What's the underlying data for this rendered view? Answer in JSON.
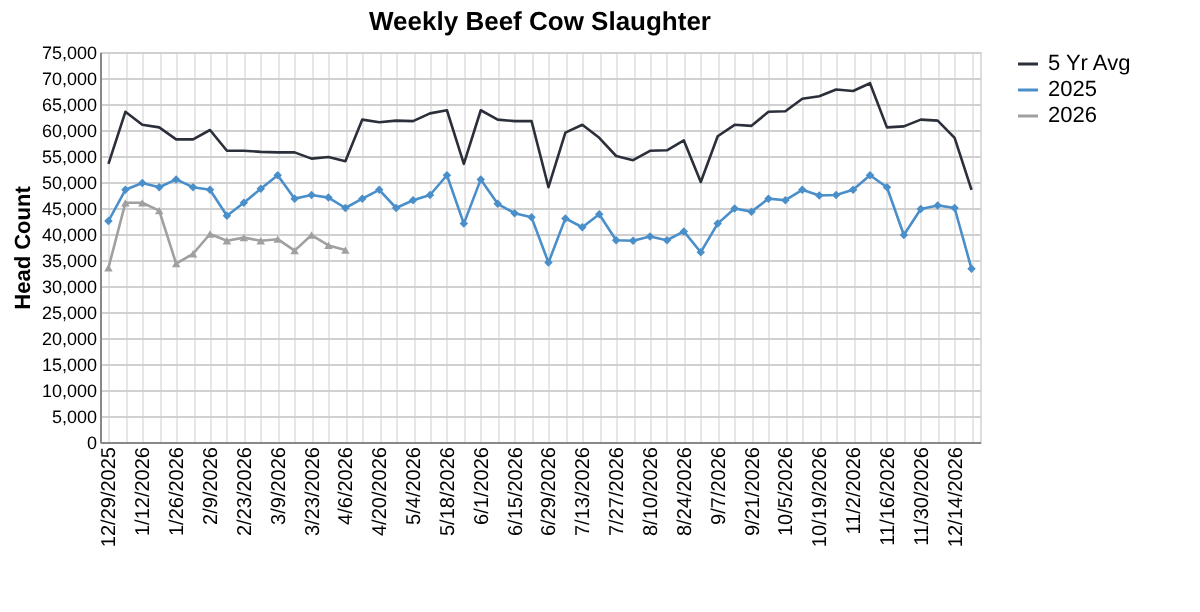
{
  "chart_data": {
    "type": "line",
    "title": "Weekly Beef Cow Slaughter",
    "ylabel": "Head Count",
    "categories": [
      "12/29/2025",
      null,
      "1/12/2026",
      null,
      "1/26/2026",
      null,
      "2/9/2026",
      null,
      "2/23/2026",
      null,
      "3/9/2026",
      null,
      "3/23/2026",
      null,
      "4/6/2026",
      null,
      "4/20/2026",
      null,
      "5/4/2026",
      null,
      "5/18/2026",
      null,
      "6/1/2026",
      null,
      "6/15/2026",
      null,
      "6/29/2026",
      null,
      "7/13/2026",
      null,
      "7/27/2026",
      null,
      "8/10/2026",
      null,
      "8/24/2026",
      null,
      "9/7/2026",
      null,
      "9/21/2026",
      null,
      "10/5/2026",
      null,
      "10/19/2026",
      null,
      "11/2/2026",
      null,
      "11/16/2026",
      null,
      "11/30/2026",
      null,
      "12/14/2026",
      null
    ],
    "series": [
      {
        "name": "5 Yr Avg",
        "color": "#2b2f3a",
        "marker": "none",
        "values": [
          53500,
          63500,
          61000,
          60500,
          58200,
          58200,
          60000,
          56000,
          56000,
          55800,
          55700,
          55700,
          54500,
          54800,
          54000,
          62000,
          61500,
          61800,
          61700,
          63200,
          63800,
          53500,
          63800,
          62000,
          61700,
          61700,
          49000,
          59500,
          61000,
          58500,
          55000,
          54200,
          56000,
          56100,
          58000,
          50000,
          58800,
          61000,
          60800,
          63500,
          63600,
          66000,
          66500,
          67800,
          67500,
          69000,
          60500,
          60700,
          62000,
          61800,
          58500,
          48500
        ]
      },
      {
        "name": "2025",
        "color": "#4a8fca",
        "marker": "diamond",
        "values": [
          42500,
          48500,
          49800,
          49000,
          50500,
          49000,
          48500,
          43500,
          46000,
          48700,
          51300,
          46800,
          47500,
          47000,
          45000,
          46800,
          48500,
          45000,
          46500,
          47500,
          51300,
          42000,
          50500,
          45800,
          44000,
          43200,
          34500,
          43000,
          41300,
          43800,
          38800,
          38700,
          39500,
          38800,
          40500,
          36500,
          42000,
          44900,
          44300,
          46800,
          46500,
          48500,
          47400,
          47500,
          48500,
          51300,
          49000,
          39800,
          44800,
          45500,
          45000,
          33300
        ]
      },
      {
        "name": "2026",
        "color": "#a0a0a0",
        "marker": "triangle",
        "values": [
          33500,
          46000,
          46000,
          44500,
          34300,
          36200,
          40000,
          38700,
          39300,
          38700,
          39000,
          36800,
          39800,
          37800,
          36900,
          null,
          null,
          null,
          null,
          null,
          null,
          null,
          null,
          null,
          null,
          null,
          null,
          null,
          null,
          null,
          null,
          null,
          null,
          null,
          null,
          null,
          null,
          null,
          null,
          null,
          null,
          null,
          null,
          null,
          null,
          null,
          null,
          null,
          null,
          null,
          null,
          null
        ]
      }
    ],
    "ylim": [
      0,
      75000
    ],
    "yticks": [
      0,
      {
        "value": 5000,
        "label": "5,000"
      },
      {
        "value": 10000,
        "label": "10,000"
      },
      {
        "value": 15000,
        "label": "15,000"
      },
      {
        "value": 20000,
        "label": "20,000"
      },
      {
        "value": 25000,
        "label": "25,000"
      },
      {
        "value": 30000,
        "label": "30,000"
      },
      {
        "value": 35000,
        "label": "35,000"
      },
      {
        "value": 40000,
        "label": "40,000"
      },
      {
        "value": 45000,
        "label": "45,000"
      },
      {
        "value": 50000,
        "label": "50,000"
      },
      {
        "value": 55000,
        "label": "55,000"
      },
      {
        "value": 60000,
        "label": "60,000"
      },
      {
        "value": 65000,
        "label": "65,000"
      },
      {
        "value": 70000,
        "label": "70,000"
      },
      {
        "value": 75000,
        "label": "75,000"
      }
    ],
    "grid": true,
    "legend": "right",
    "line_style": "solid"
  }
}
